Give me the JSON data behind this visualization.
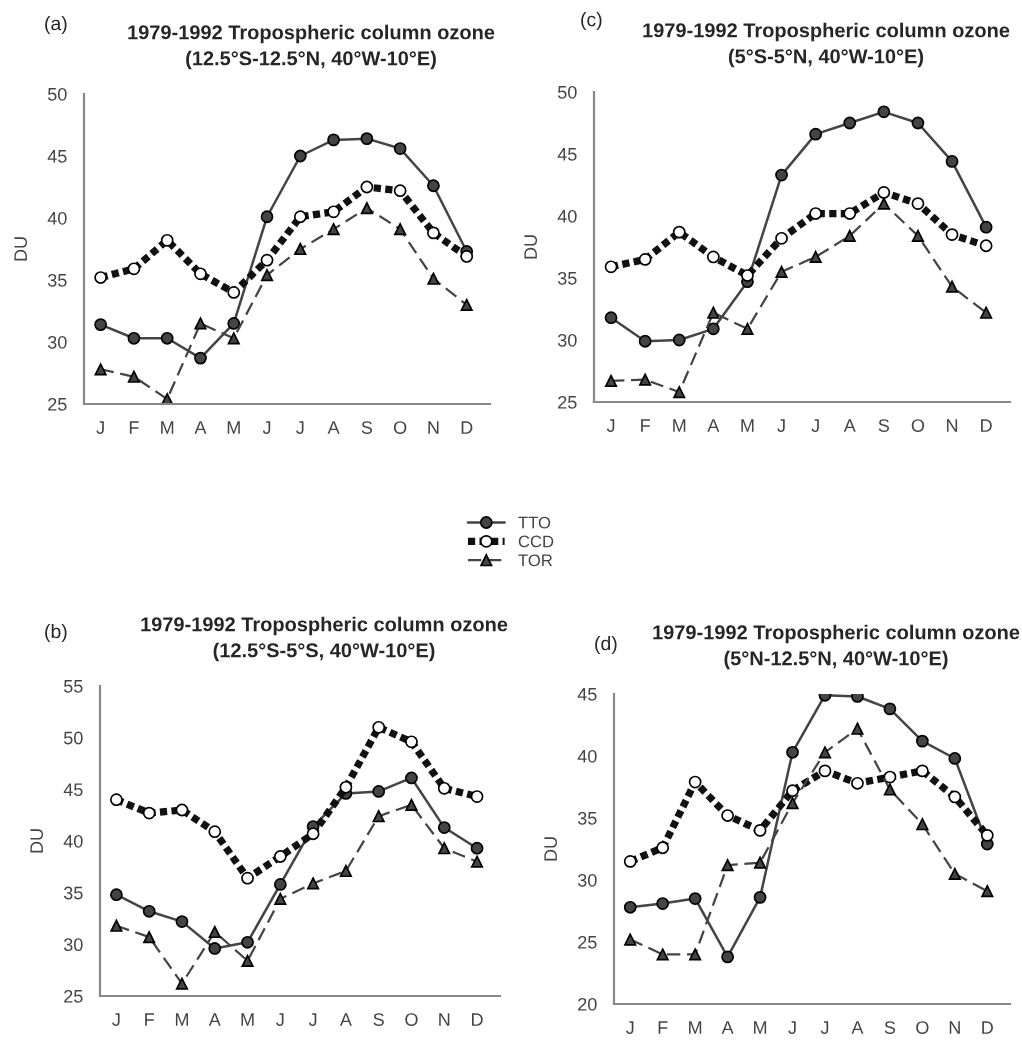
{
  "chart_data": [
    {
      "type": "line",
      "title": "1979-1992 Tropospheric column ozone",
      "subtitle": "(12.5°S-12.5°N, 40°W-10°E)",
      "ylabel": "DU",
      "annotations": [
        "(a)"
      ],
      "categories": [
        "J",
        "F",
        "M",
        "A",
        "M",
        "J",
        "J",
        "A",
        "S",
        "O",
        "N",
        "D"
      ],
      "ylim": [
        25,
        50
      ],
      "yticks": [
        25,
        30,
        35,
        40,
        45,
        50
      ],
      "grid": false,
      "legend": "bottom right",
      "series": [
        {
          "name": "TTO",
          "color": "#444444",
          "marker": "circle",
          "line_style": "solid",
          "values": [
            31.4,
            30.3,
            30.3,
            28.7,
            31.5,
            40.1,
            45.0,
            46.3,
            46.4,
            45.6,
            42.6,
            37.3
          ]
        },
        {
          "name": "CCD",
          "color": "#111111",
          "marker": "circle",
          "line_style": "dotted",
          "values": [
            35.2,
            35.9,
            38.2,
            35.5,
            34.0,
            36.6,
            40.1,
            40.5,
            42.5,
            42.2,
            38.8,
            36.9
          ]
        },
        {
          "name": "TOR",
          "color": "#444444",
          "marker": "triangle",
          "line_style": "dashed",
          "values": [
            27.8,
            27.2,
            25.4,
            31.5,
            30.3,
            35.4,
            37.5,
            39.1,
            40.8,
            39.1,
            35.1,
            33.0
          ]
        }
      ]
    },
    {
      "type": "line",
      "title": "1979-1992 Tropospheric column ozone",
      "subtitle": "(5°S-5°N, 40°W-10°E)",
      "ylabel": "DU",
      "annotations": [
        "(c)"
      ],
      "categories": [
        "J",
        "F",
        "M",
        "A",
        "M",
        "J",
        "J",
        "A",
        "S",
        "O",
        "N",
        "D"
      ],
      "ylim": [
        25,
        50
      ],
      "yticks": [
        25,
        30,
        35,
        40,
        45,
        50
      ],
      "grid": false,
      "series": [
        {
          "color": "#444444",
          "marker": "circle",
          "line_style": "solid",
          "values": [
            31.8,
            29.9,
            30.0,
            30.9,
            34.7,
            43.3,
            46.6,
            47.5,
            48.4,
            47.5,
            44.4,
            39.1
          ]
        },
        {
          "color": "#111111",
          "marker": "circle",
          "line_style": "dotted",
          "values": [
            35.9,
            36.5,
            38.7,
            36.7,
            35.2,
            38.2,
            40.2,
            40.2,
            41.9,
            41.0,
            38.5,
            37.6
          ]
        },
        {
          "color": "#444444",
          "marker": "triangle",
          "line_style": "dashed",
          "values": [
            26.7,
            26.8,
            25.8,
            32.2,
            30.9,
            35.5,
            36.7,
            38.4,
            41.0,
            38.4,
            34.3,
            32.2
          ]
        }
      ]
    },
    {
      "type": "line",
      "title": "1979-1992 Tropospheric column ozone",
      "subtitle": "(12.5°S-5°S, 40°W-10°E)",
      "ylabel": "DU",
      "annotations": [
        "(b)"
      ],
      "categories": [
        "J",
        "F",
        "M",
        "A",
        "M",
        "J",
        "J",
        "A",
        "S",
        "O",
        "N",
        "D"
      ],
      "ylim": [
        25,
        55
      ],
      "yticks": [
        25,
        30,
        35,
        40,
        45,
        50,
        55
      ],
      "grid": false,
      "series": [
        {
          "color": "#444444",
          "marker": "circle",
          "line_style": "solid",
          "values": [
            34.8,
            33.2,
            32.2,
            29.6,
            30.2,
            35.8,
            41.4,
            44.6,
            44.8,
            46.1,
            41.3,
            39.3
          ]
        },
        {
          "color": "#111111",
          "marker": "circle",
          "line_style": "dotted",
          "values": [
            44.0,
            42.7,
            43.0,
            40.9,
            36.4,
            38.5,
            40.7,
            45.2,
            51.0,
            49.6,
            45.1,
            44.3
          ]
        },
        {
          "color": "#444444",
          "marker": "triangle",
          "line_style": "dashed",
          "values": [
            31.8,
            30.7,
            26.2,
            31.2,
            28.4,
            34.4,
            35.9,
            37.1,
            42.4,
            43.5,
            39.3,
            38.0
          ]
        }
      ]
    },
    {
      "type": "line",
      "title": "1979-1992 Tropospheric column ozone",
      "subtitle": "(5°N-12.5°N, 40°W-10°E)",
      "ylabel": "DU",
      "annotations": [
        "(d)"
      ],
      "categories": [
        "J",
        "F",
        "M",
        "A",
        "M",
        "J",
        "J",
        "A",
        "S",
        "O",
        "N",
        "D"
      ],
      "ylim": [
        20,
        45
      ],
      "yticks": [
        20,
        25,
        30,
        35,
        40,
        45
      ],
      "grid": false,
      "series": [
        {
          "color": "#444444",
          "marker": "circle",
          "line_style": "solid",
          "values": [
            27.8,
            28.1,
            28.5,
            23.8,
            28.6,
            40.3,
            44.9,
            44.8,
            43.8,
            41.2,
            39.8,
            32.9
          ]
        },
        {
          "color": "#111111",
          "marker": "circle",
          "line_style": "dotted",
          "values": [
            31.5,
            32.6,
            37.9,
            35.2,
            34.0,
            37.2,
            38.8,
            37.8,
            38.3,
            38.8,
            36.7,
            33.6
          ]
        },
        {
          "color": "#444444",
          "marker": "triangle",
          "line_style": "dashed",
          "values": [
            25.2,
            24.0,
            24.0,
            31.2,
            31.4,
            36.2,
            40.3,
            42.2,
            37.3,
            34.5,
            30.5,
            29.1
          ]
        }
      ]
    }
  ]
}
